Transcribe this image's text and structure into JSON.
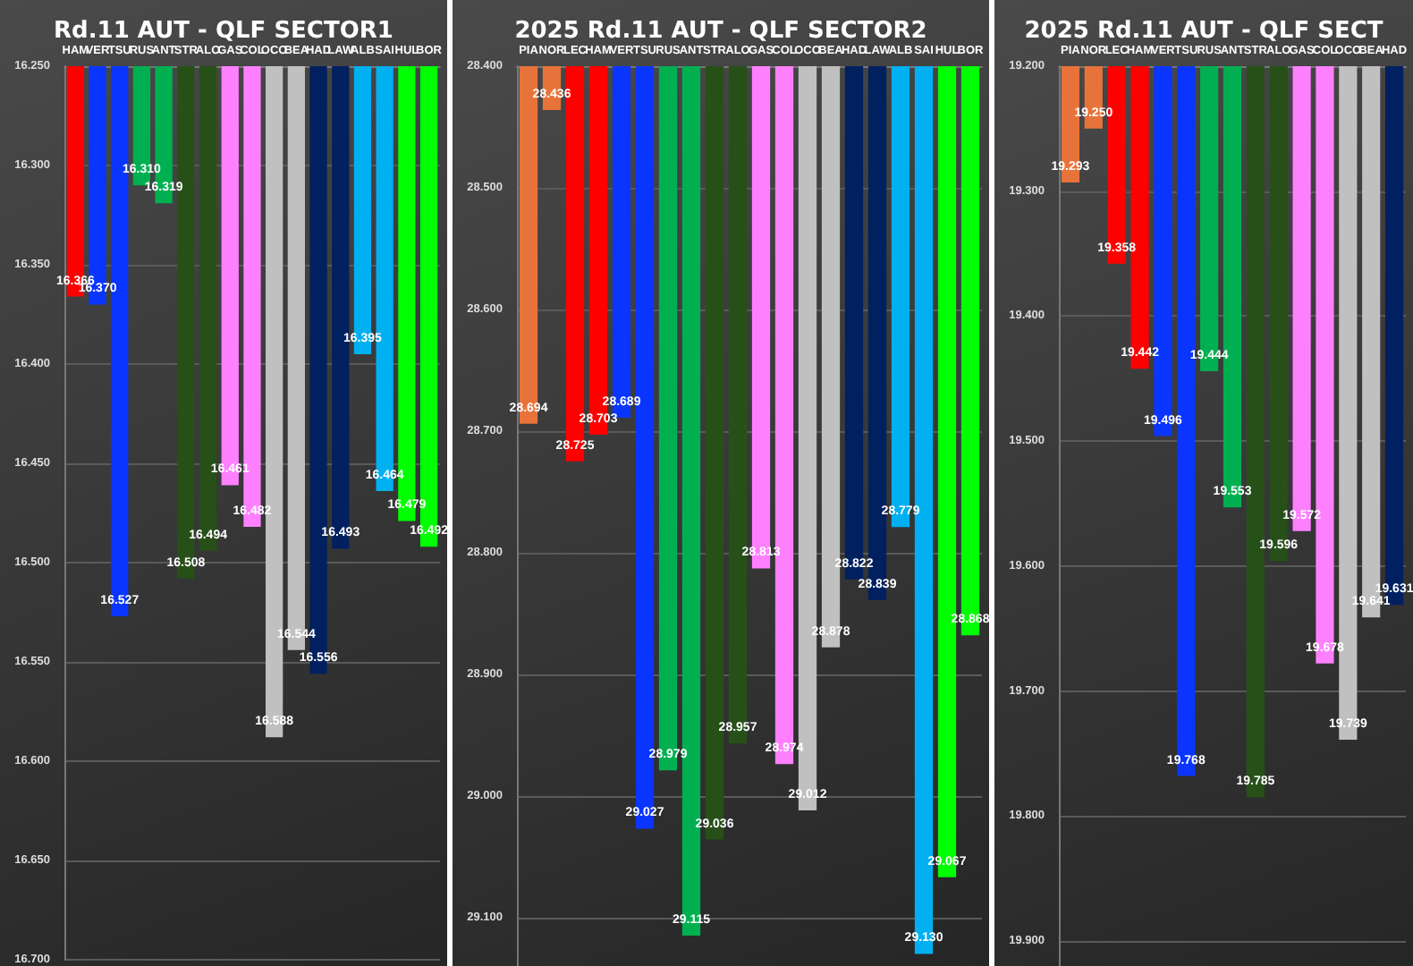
{
  "chart_data": [
    {
      "type": "bar",
      "title": "Rd.11 AUT - QLF SECTOR1",
      "categories": [
        "HAM",
        "VER",
        "TSU",
        "RUS",
        "ANT",
        "STR",
        "ALO",
        "GAS",
        "COL",
        "OCO",
        "BEA",
        "HAD",
        "LAW",
        "ALB",
        "SAI",
        "HUL",
        "BOR"
      ],
      "values": [
        16.366,
        16.37,
        16.527,
        16.31,
        16.319,
        16.508,
        16.494,
        16.461,
        16.482,
        16.588,
        16.544,
        16.556,
        16.493,
        16.395,
        16.464,
        16.479,
        16.492
      ],
      "colors": [
        "#ff0000",
        "#0a35ff",
        "#0a35ff",
        "#00b050",
        "#00b050",
        "#275019",
        "#275019",
        "#ff80ff",
        "#ff80ff",
        "#c0c0c0",
        "#c0c0c0",
        "#002060",
        "#002060",
        "#00b0f0",
        "#00b0f0",
        "#00ff00",
        "#00ff00"
      ],
      "value_labels": [
        "16.366",
        "16.370",
        "16.527",
        "16.310",
        "16.319",
        "16.508",
        "16.494",
        "16.461",
        "16.482",
        "16.588",
        "16.544",
        "16.556",
        "16.493",
        "16.395",
        "16.464",
        "16.479",
        "16.492"
      ],
      "ylim": [
        16.7,
        16.25
      ],
      "yticks": [
        {
          "value": 16.25,
          "label": "16.250"
        },
        {
          "value": 16.3,
          "label": "16.300"
        },
        {
          "value": 16.35,
          "label": "16.350"
        },
        {
          "value": 16.4,
          "label": "16.400"
        },
        {
          "value": 16.45,
          "label": "16.450"
        },
        {
          "value": 16.5,
          "label": "16.500"
        },
        {
          "value": 16.55,
          "label": "16.550"
        },
        {
          "value": 16.6,
          "label": "16.600"
        },
        {
          "value": 16.65,
          "label": "16.650"
        },
        {
          "value": 16.7,
          "label": "16.700"
        }
      ],
      "grid": "y"
    },
    {
      "type": "bar",
      "title": "2025 Rd.11 AUT - QLF SECTOR2",
      "categories": [
        "PIA",
        "NOR",
        "LEC",
        "HAM",
        "VER",
        "TSU",
        "RUS",
        "ANT",
        "STR",
        "ALO",
        "GAS",
        "COL",
        "OCO",
        "BEA",
        "HAD",
        "LAW",
        "ALB",
        "SAI",
        "HUL",
        "BOR"
      ],
      "values": [
        28.694,
        28.436,
        28.725,
        28.703,
        28.689,
        29.027,
        28.979,
        29.115,
        29.036,
        28.957,
        28.813,
        28.974,
        29.012,
        28.878,
        28.822,
        28.839,
        28.779,
        29.13,
        29.067,
        28.868
      ],
      "colors": [
        "#e8733a",
        "#e8733a",
        "#ff0000",
        "#ff0000",
        "#0a35ff",
        "#0a35ff",
        "#00b050",
        "#00b050",
        "#275019",
        "#275019",
        "#ff80ff",
        "#ff80ff",
        "#c0c0c0",
        "#c0c0c0",
        "#002060",
        "#002060",
        "#00b0f0",
        "#00b0f0",
        "#00ff00",
        "#00ff00"
      ],
      "value_labels": [
        "28.694",
        "28.436",
        "28.725",
        "28.703",
        "28.689",
        "29.027",
        "28.979",
        "29.115",
        "29.036",
        "28.957",
        "28.813",
        "28.974",
        "29.012",
        "28.878",
        "28.822",
        "28.839",
        "28.779",
        "29.130",
        "29.067",
        "28.868"
      ],
      "ylim": [
        29.14,
        28.4
      ],
      "yticks": [
        {
          "value": 28.4,
          "label": "28.400"
        },
        {
          "value": 28.5,
          "label": "28.500"
        },
        {
          "value": 28.6,
          "label": "28.600"
        },
        {
          "value": 28.7,
          "label": "28.700"
        },
        {
          "value": 28.8,
          "label": "28.800"
        },
        {
          "value": 28.9,
          "label": "28.900"
        },
        {
          "value": 29.0,
          "label": "29.000"
        },
        {
          "value": 29.1,
          "label": "29.100"
        }
      ],
      "grid": "y"
    },
    {
      "type": "bar",
      "title": "2025 Rd.11 AUT - QLF SECT",
      "categories": [
        "PIA",
        "NOR",
        "LEC",
        "HAM",
        "VER",
        "TSU",
        "RUS",
        "ANT",
        "STR",
        "ALO",
        "GAS",
        "COL",
        "OCO",
        "BEA",
        "HAD"
      ],
      "values": [
        19.293,
        19.25,
        19.358,
        19.442,
        19.496,
        19.768,
        19.444,
        19.553,
        19.785,
        19.596,
        19.572,
        19.678,
        19.739,
        19.641,
        19.631
      ],
      "colors": [
        "#e8733a",
        "#e8733a",
        "#ff0000",
        "#ff0000",
        "#0a35ff",
        "#0a35ff",
        "#00b050",
        "#00b050",
        "#275019",
        "#275019",
        "#ff80ff",
        "#ff80ff",
        "#c0c0c0",
        "#c0c0c0",
        "#002060"
      ],
      "value_labels": [
        "19.293",
        "19.250",
        "19.358",
        "19.442",
        "19.496",
        "19.768",
        "19.444",
        "19.553",
        "19.785",
        "19.596",
        "19.572",
        "19.678",
        "19.739",
        "19.641",
        "19.631"
      ],
      "ylim": [
        19.92,
        19.2
      ],
      "yticks": [
        {
          "value": 19.2,
          "label": "19.200"
        },
        {
          "value": 19.3,
          "label": "19.300"
        },
        {
          "value": 19.4,
          "label": "19.400"
        },
        {
          "value": 19.5,
          "label": "19.500"
        },
        {
          "value": 19.6,
          "label": "19.600"
        },
        {
          "value": 19.7,
          "label": "19.700"
        },
        {
          "value": 19.8,
          "label": "19.800"
        },
        {
          "value": 19.9,
          "label": "19.900"
        }
      ],
      "grid": "y"
    }
  ]
}
